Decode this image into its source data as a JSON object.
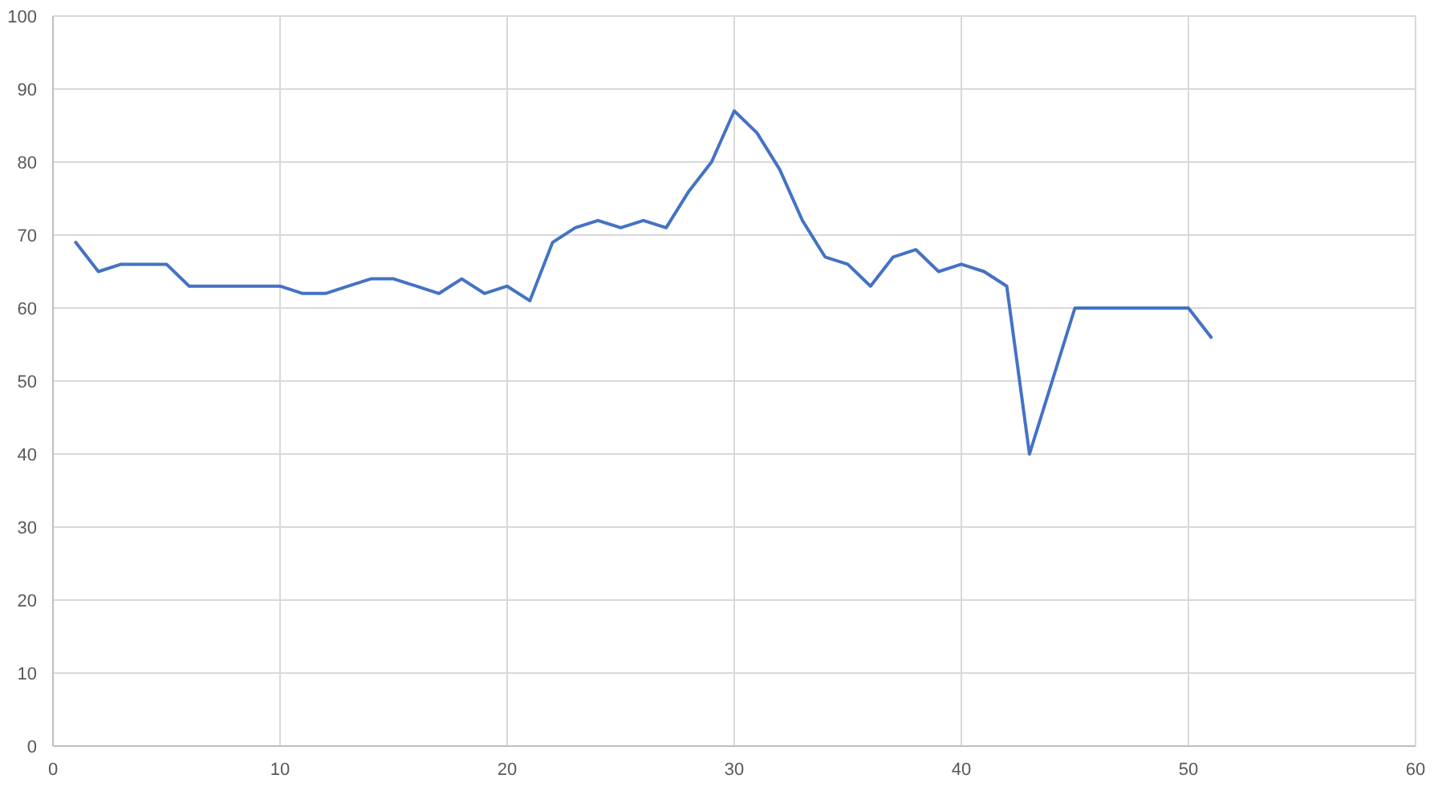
{
  "chart_data": {
    "type": "line",
    "x": [
      1,
      2,
      3,
      4,
      5,
      6,
      7,
      8,
      9,
      10,
      11,
      12,
      13,
      14,
      15,
      16,
      17,
      18,
      19,
      20,
      21,
      22,
      23,
      24,
      25,
      26,
      27,
      28,
      29,
      30,
      31,
      32,
      33,
      34,
      35,
      36,
      37,
      38,
      39,
      40,
      41,
      42,
      43,
      44,
      45,
      46,
      47,
      48,
      49,
      50,
      51
    ],
    "series": [
      {
        "color": "#4472c4",
        "values": [
          69,
          65,
          66,
          66,
          66,
          63,
          63,
          63,
          63,
          63,
          62,
          62,
          63,
          64,
          64,
          63,
          62,
          64,
          62,
          63,
          61,
          69,
          71,
          72,
          71,
          72,
          71,
          76,
          80,
          87,
          84,
          79,
          72,
          67,
          66,
          63,
          67,
          68,
          65,
          66,
          65,
          63,
          40,
          50,
          60,
          60,
          60,
          60,
          60,
          60,
          56
        ]
      }
    ],
    "xlim": [
      0,
      60
    ],
    "xticks": [
      0,
      10,
      20,
      30,
      40,
      50,
      60
    ],
    "ylim": [
      0,
      100
    ],
    "yticks": [
      0,
      10,
      20,
      30,
      40,
      50,
      60,
      70,
      80,
      90,
      100
    ],
    "grid": true,
    "marker": "none",
    "line_style": "solid"
  }
}
